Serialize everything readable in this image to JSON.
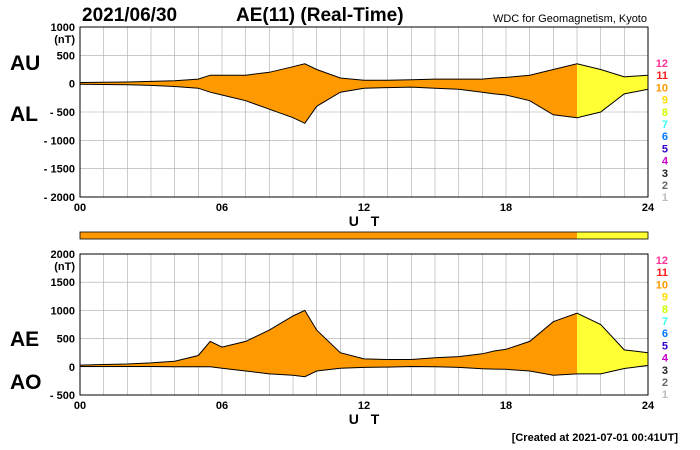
{
  "header": {
    "date": "2021/06/30",
    "title": "AE(11) (Real-Time)",
    "source": "WDC for Geomagnetism, Kyoto"
  },
  "footer": {
    "created": "[Created at 2021-07-01 00:41UT]"
  },
  "colors": {
    "level_10": "#ff9900",
    "level_11": "#ff8800",
    "level_9": "#ffff33",
    "curve": "#000000",
    "grid": "#aaaaaa"
  },
  "legend_levels": [
    {
      "label": "12",
      "color": "#ff3399"
    },
    {
      "label": "11",
      "color": "#ff1a1a"
    },
    {
      "label": "10",
      "color": "#ff9900"
    },
    {
      "label": "9",
      "color": "#ffdd00"
    },
    {
      "label": "8",
      "color": "#ccff00"
    },
    {
      "label": "7",
      "color": "#33ffee"
    },
    {
      "label": "6",
      "color": "#0077ff"
    },
    {
      "label": "5",
      "color": "#3300cc"
    },
    {
      "label": "4",
      "color": "#cc00cc"
    },
    {
      "label": "3",
      "color": "#222222"
    },
    {
      "label": "2",
      "color": "#666666"
    },
    {
      "label": "1",
      "color": "#bbbbbb"
    }
  ],
  "chart_data": [
    {
      "type": "area",
      "ylabel_unit": "(nT)",
      "xlabel": "U T",
      "series_labels": [
        "AU",
        "AL"
      ],
      "ylim": [
        -2000,
        1000
      ],
      "yticks": [
        "1000",
        "500",
        "0",
        "- 500",
        "- 1000",
        "- 1500",
        "- 2000"
      ],
      "ytick_values": [
        1000,
        500,
        0,
        -500,
        -1000,
        -1500,
        -2000
      ],
      "xlim": [
        0,
        24
      ],
      "xticks": [
        "00",
        "06",
        "12",
        "18",
        "24"
      ],
      "xtick_values": [
        0,
        6,
        12,
        18,
        24
      ],
      "x": [
        0,
        1,
        2,
        3,
        4,
        5,
        5.5,
        6,
        7,
        8,
        9,
        9.5,
        10,
        11,
        12,
        13,
        14,
        15,
        16,
        17,
        17.5,
        18,
        19,
        20,
        21,
        22,
        23,
        24
      ],
      "AU": [
        20,
        25,
        30,
        40,
        50,
        80,
        150,
        150,
        150,
        200,
        300,
        350,
        250,
        100,
        60,
        60,
        70,
        80,
        80,
        80,
        100,
        110,
        150,
        250,
        350,
        250,
        120,
        150
      ],
      "AL": [
        -10,
        -15,
        -20,
        -30,
        -50,
        -80,
        -150,
        -200,
        -300,
        -450,
        -600,
        -700,
        -400,
        -150,
        -80,
        -70,
        -60,
        -80,
        -100,
        -150,
        -180,
        -200,
        -300,
        -550,
        -600,
        -500,
        -180,
        -100
      ]
    },
    {
      "type": "area",
      "ylabel_unit": "(nT)",
      "xlabel": "U T",
      "series_labels": [
        "AE",
        "AO"
      ],
      "ylim": [
        -500,
        2000
      ],
      "yticks": [
        "2000",
        "1500",
        "1000",
        "500",
        "0",
        "- 500"
      ],
      "ytick_values": [
        2000,
        1500,
        1000,
        500,
        0,
        -500
      ],
      "xlim": [
        0,
        24
      ],
      "xticks": [
        "00",
        "06",
        "12",
        "18",
        "24"
      ],
      "xtick_values": [
        0,
        6,
        12,
        18,
        24
      ],
      "x": [
        0,
        1,
        2,
        3,
        4,
        5,
        5.5,
        6,
        7,
        8,
        9,
        9.5,
        10,
        11,
        12,
        13,
        14,
        15,
        16,
        17,
        17.5,
        18,
        19,
        20,
        21,
        22,
        23,
        24
      ],
      "AE": [
        30,
        40,
        50,
        70,
        100,
        200,
        450,
        350,
        450,
        650,
        900,
        1000,
        650,
        250,
        140,
        130,
        130,
        160,
        180,
        230,
        280,
        310,
        450,
        800,
        950,
        750,
        300,
        250
      ],
      "AO": [
        5,
        5,
        5,
        5,
        0,
        0,
        0,
        -25,
        -75,
        -125,
        -150,
        -175,
        -75,
        -25,
        -10,
        -5,
        5,
        0,
        -10,
        -35,
        -40,
        -45,
        -75,
        -150,
        -125,
        -125,
        -30,
        25
      ]
    }
  ],
  "activity_bar": [
    {
      "from": 0,
      "to": 21,
      "color": "#ff9900"
    },
    {
      "from": 21,
      "to": 24,
      "color": "#ffff33"
    }
  ]
}
